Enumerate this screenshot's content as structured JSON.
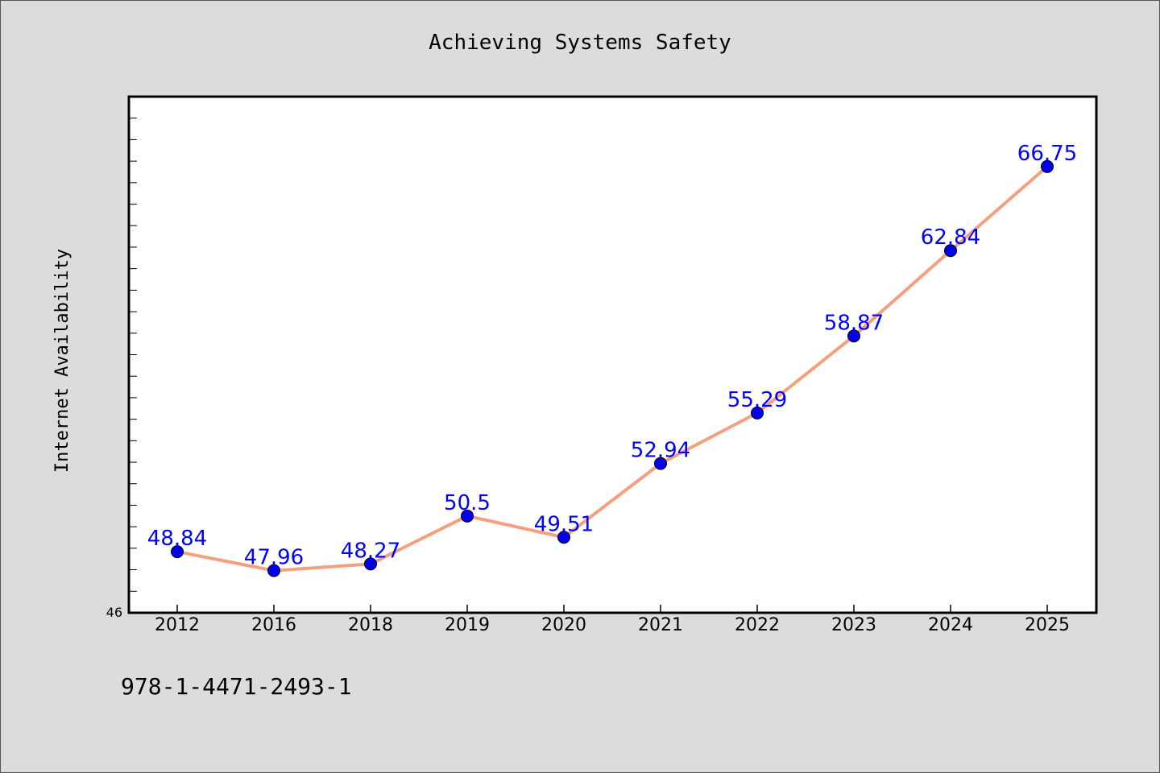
{
  "chart_data": {
    "type": "line",
    "title": "Achieving Systems Safety",
    "ylabel": "Internet Availability",
    "xlabel": "",
    "categories": [
      "2012",
      "2016",
      "2018",
      "2019",
      "2020",
      "2021",
      "2022",
      "2023",
      "2024",
      "2025"
    ],
    "series": [
      {
        "values": [
          48.84,
          47.96,
          48.27,
          50.5,
          49.51,
          52.94,
          55.29,
          58.87,
          62.84,
          66.75
        ],
        "labels": [
          "48.84",
          "47.96",
          "48.27",
          "50.5",
          "49.51",
          "52.94",
          "55.29",
          "58.87",
          "62.84",
          "66.75"
        ],
        "line_color": "#f4a07e",
        "marker_color": "#0000ee"
      }
    ],
    "ylim": [
      46,
      70
    ],
    "ytick_label": "46",
    "grid": false,
    "legend": "none"
  },
  "footer_text": "978-1-4471-2493-1"
}
